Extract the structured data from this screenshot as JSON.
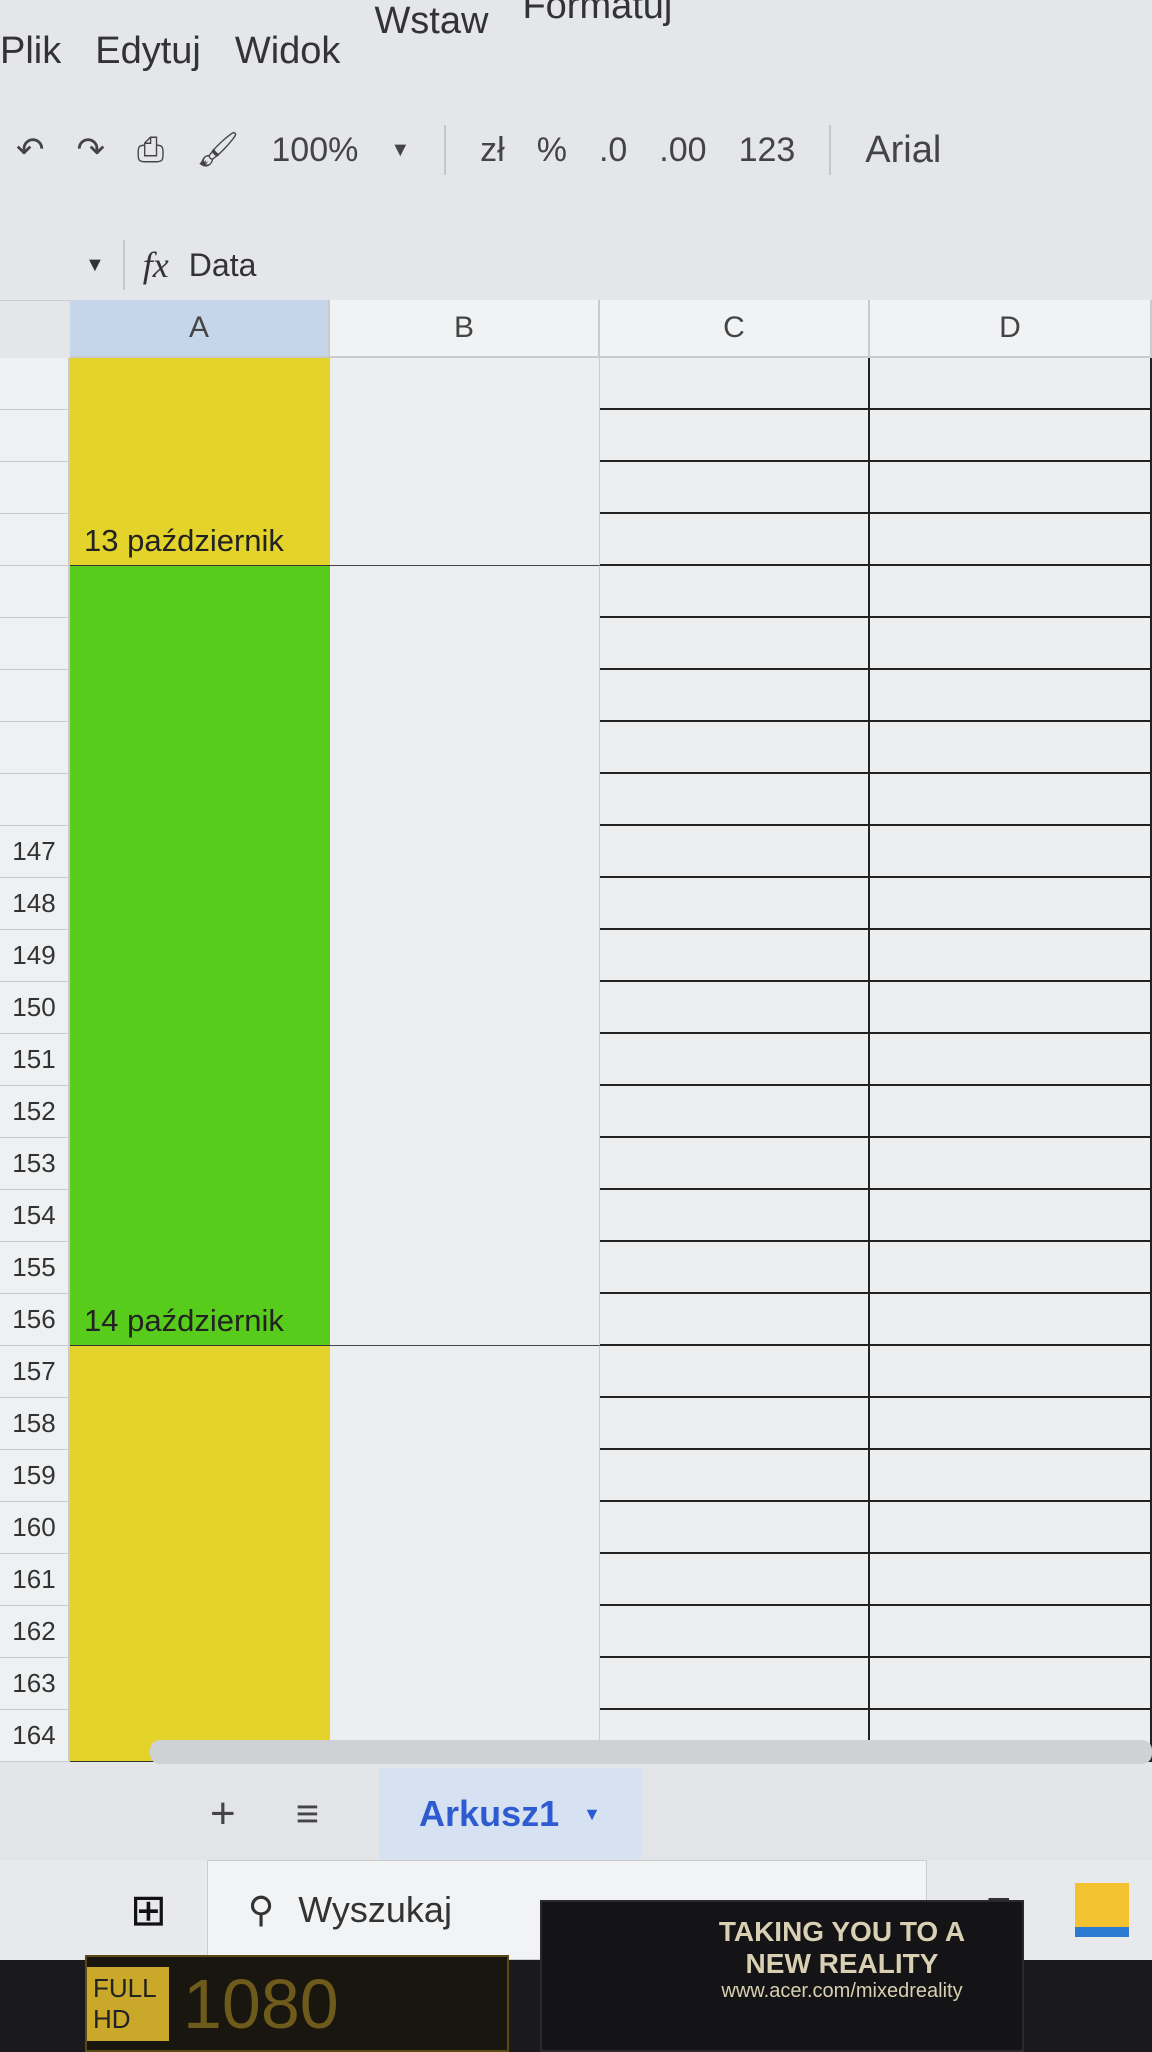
{
  "menu": {
    "items": [
      "Plik",
      "Edytuj",
      "Widok",
      "Wstaw",
      "Formatuj"
    ]
  },
  "toolbar": {
    "undo_icon": "undo-icon",
    "redo_icon": "redo-icon",
    "print_icon": "print-icon",
    "paint_icon": "paint-format-icon",
    "zoom": "100%",
    "currency": "zł",
    "percent": "%",
    "dec_decrease": ".0",
    "dec_increase": ".00",
    "number_format": "123",
    "font": "Arial"
  },
  "formula_bar": {
    "fx": "fx",
    "value": "Data"
  },
  "columns": [
    "A",
    "B",
    "C",
    "D"
  ],
  "blocks": [
    {
      "label": "13 październik",
      "color": "#e4d32a",
      "rows": 4
    },
    {
      "label": "14 październik",
      "color": "#58cc1a",
      "rows": 15
    },
    {
      "label": "",
      "color": "#e4d32a",
      "rows": 8
    }
  ],
  "row_numbers": [
    "",
    "",
    "",
    "",
    "",
    "",
    "",
    "",
    "",
    "147",
    "148",
    "149",
    "150",
    "151",
    "152",
    "153",
    "154",
    "155",
    "156",
    "157",
    "158",
    "159",
    "160",
    "161",
    "162",
    "163",
    "164"
  ],
  "sheet_tabs": {
    "add": "+",
    "list": "≡",
    "active": "Arkusz1"
  },
  "taskbar": {
    "search_placeholder": "Wyszukaj"
  },
  "bezel": {
    "sticker_line1": "TAKING YOU TO A",
    "sticker_line2": "NEW REALITY",
    "sticker_url": "www.acer.com/mixedreality",
    "fullhd_label": "FULL HD",
    "fullhd_number": "1080"
  }
}
